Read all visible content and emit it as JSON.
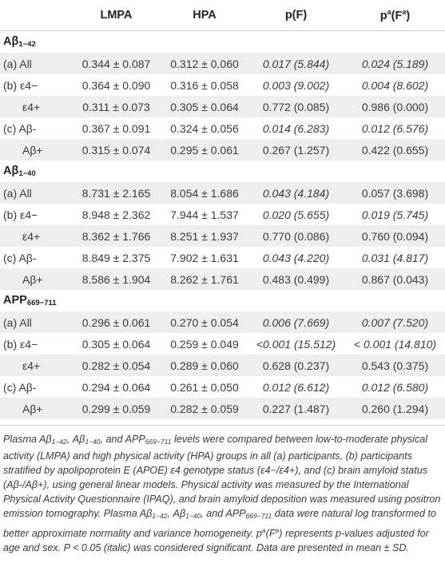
{
  "header": {
    "col1": "LMPA",
    "col2": "HPA",
    "col3": "p(F)",
    "col4_base": "p",
    "col4_sup": "a",
    "col4_mid": "(F",
    "col4_sup2": "a",
    "col4_end": ")"
  },
  "sections": [
    {
      "title_main": "Aβ",
      "title_sub": "1−42",
      "rows": [
        {
          "group": "(a) All",
          "sub": "",
          "lmpa": "0.344 ± 0.087",
          "hpa": "0.312 ± 0.060",
          "pf": "0.017 (5.844)",
          "pa": "0.024 (5.189)"
        },
        {
          "group": "(b) ε4−",
          "sub": "",
          "lmpa": "0.364 ± 0.090",
          "hpa": "0.316 ± 0.058",
          "pf": "0.003 (9.002)",
          "pa": "0.004 (8.602)"
        },
        {
          "group": "",
          "sub": "ε4+",
          "lmpa": "0.311 ± 0.073",
          "hpa": "0.305 ± 0.064",
          "pf": "0.772 (0.085)",
          "pa": "0.986 (0.000)"
        },
        {
          "group": "(c) Aβ-",
          "sub": "",
          "lmpa": "0.367 ± 0.091",
          "hpa": "0.324 ± 0.056",
          "pf": "0.014 (6.283)",
          "pa": "0.012 (6.576)"
        },
        {
          "group": "",
          "sub": "Aβ+",
          "lmpa": "0.315 ± 0.074",
          "hpa": "0.295 ± 0.061",
          "pf": "0.267 (1.257)",
          "pa": "0.422 (0.655)"
        }
      ]
    },
    {
      "title_main": "Aβ",
      "title_sub": "1−40",
      "rows": [
        {
          "group": "(a) All",
          "sub": "",
          "lmpa": "8.731 ± 2.165",
          "hpa": "8.054 ± 1.686",
          "pf": "0.043 (4.184)",
          "pa": "0.057 (3.698)"
        },
        {
          "group": "(b) ε4−",
          "sub": "",
          "lmpa": "8.948 ± 2.362",
          "hpa": "7.944 ± 1.537",
          "pf": "0.020 (5.655)",
          "pa": "0.019 (5.745)"
        },
        {
          "group": "",
          "sub": "ε4+",
          "lmpa": "8.362 ± 1.766",
          "hpa": "8.251 ± 1.937",
          "pf": "0.770 (0.086)",
          "pa": "0.760 (0.094)"
        },
        {
          "group": "(c) Aβ-",
          "sub": "",
          "lmpa": "8.849 ± 2.375",
          "hpa": "7.902 ± 1.631",
          "pf": "0.043 (4.220)",
          "pa": "0.031 (4.817)"
        },
        {
          "group": "",
          "sub": "Aβ+",
          "lmpa": "8.586 ± 1.904",
          "hpa": "8.262 ± 1.761",
          "pf": "0.483 (0.499)",
          "pa": "0.867 (0.043)"
        }
      ]
    },
    {
      "title_main": "APP",
      "title_sub": "669−711",
      "rows": [
        {
          "group": "(a) All",
          "sub": "",
          "lmpa": "0.296 ± 0.061",
          "hpa": "0.270 ± 0.054",
          "pf": "0.006 (7.669)",
          "pa": "0.007 (7.520)"
        },
        {
          "group": "(b) ε4−",
          "sub": "",
          "lmpa": "0.305 ± 0.064",
          "hpa": "0.259 ± 0.049",
          "pf": "<0.001 (15.512)",
          "pa": "< 0.001 (14.810)"
        },
        {
          "group": "",
          "sub": "ε4+",
          "lmpa": "0.282 ± 0.054",
          "hpa": "0.289 ± 0.060",
          "pf": "0.628 (0.237)",
          "pa": "0.543 (0.375)"
        },
        {
          "group": "(c) Aβ-",
          "sub": "",
          "lmpa": "0.294 ± 0.064",
          "hpa": "0.261 ± 0.050",
          "pf": "0.012 (6.612)",
          "pa": "0.012 (6.580)"
        },
        {
          "group": "",
          "sub": "Aβ+",
          "lmpa": "0.299 ± 0.059",
          "hpa": "0.282 ± 0.059",
          "pf": "0.227 (1.487)",
          "pa": "0.260 (1.294)"
        }
      ]
    }
  ],
  "italic_cells": [
    [
      true,
      true
    ],
    [
      true,
      true
    ],
    [
      false,
      false
    ],
    [
      true,
      true
    ],
    [
      false,
      false
    ],
    [
      true,
      false
    ],
    [
      true,
      true
    ],
    [
      false,
      false
    ],
    [
      true,
      true
    ],
    [
      false,
      false
    ],
    [
      true,
      true
    ],
    [
      true,
      true
    ],
    [
      false,
      false
    ],
    [
      true,
      true
    ],
    [
      false,
      false
    ]
  ],
  "shade_color": "#eeeeee",
  "footnote": {
    "p1": "Plasma Aβ",
    "s1": "1−42",
    "p2": ", Aβ",
    "s2": "1−40",
    "p3": ", and APP",
    "s3": "669−711",
    "p4": " levels were compared between low-to-moderate physical activity (LMPA) and high physical activity (HPA) groups in all (a) participants, (b) participants stratified by apolipoprotein E (APOE) ε4 genotype status (ε4−/ε4+), and (c) brain amyloid status (Aβ-/Aβ+), using general linear models. Physical activity was measured by the International Physical Activity Questionnaire (IPAQ), and brain amyloid deposition was measured using positron emission tomography. Plasma Aβ",
    "s4": "1−42",
    "p5": ", Aβ",
    "s5": "1−40",
    "p6": ", and APP",
    "s6": "669−711",
    "p7": " data were natural log transformed to better approximate normality and variance homogeneity. p",
    "sup1": "a",
    "p8": "(F",
    "sup2": "a",
    "p9": ") represents p-values adjusted for age and sex. P < 0.05 (italic) was considered significant. Data are presented in mean ± SD."
  }
}
